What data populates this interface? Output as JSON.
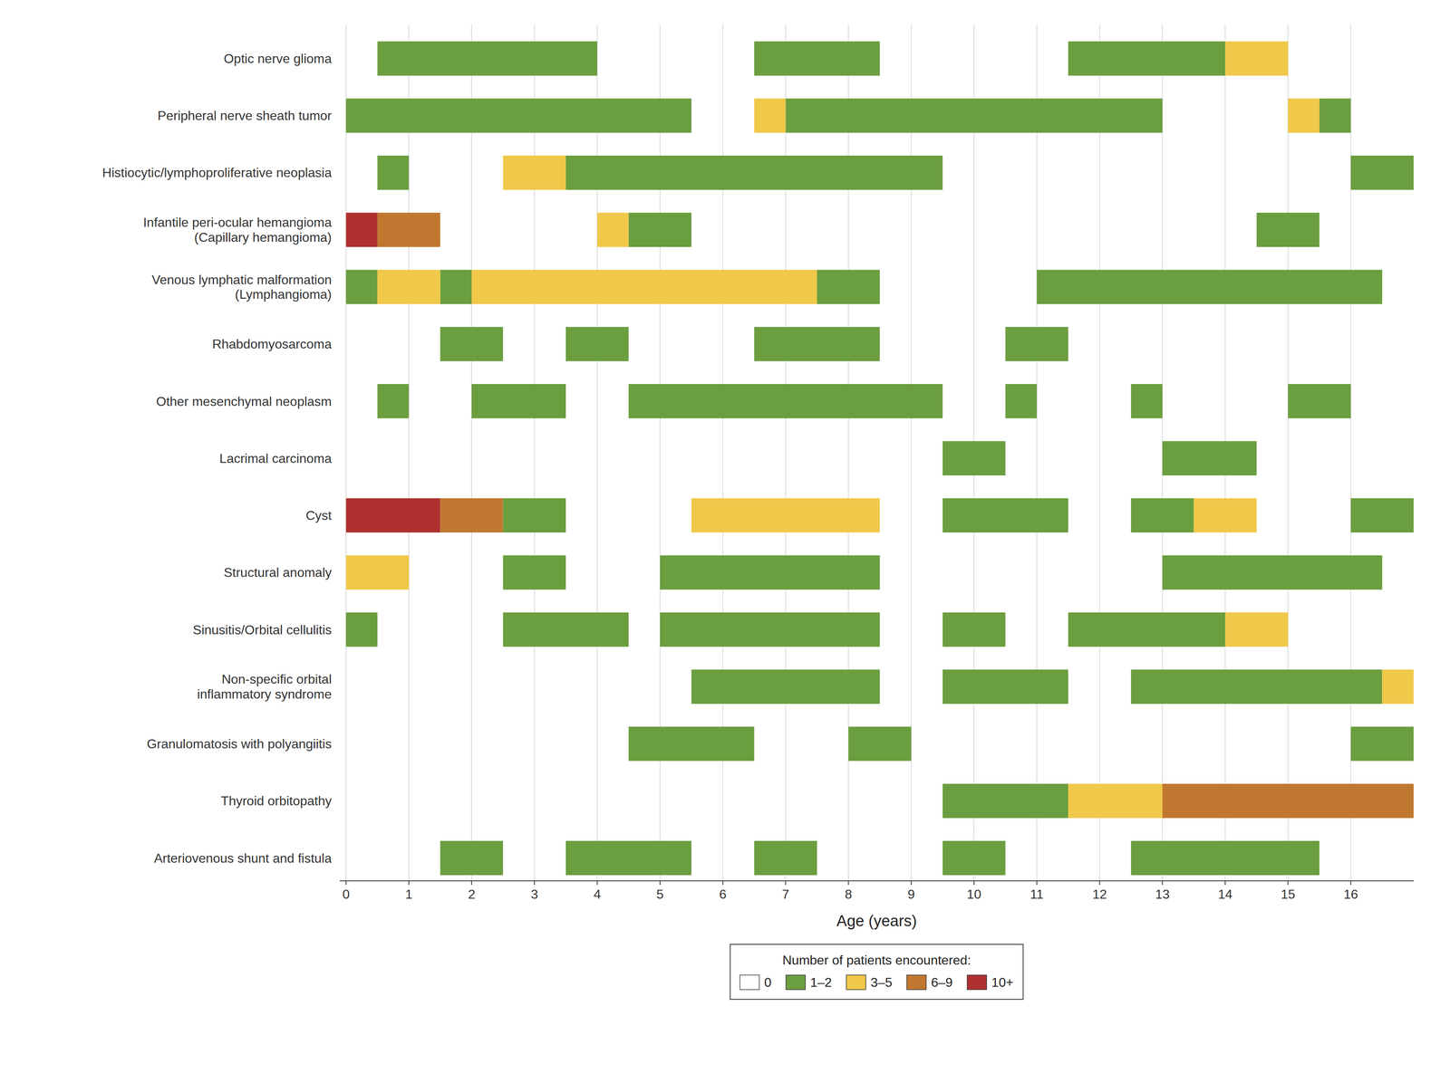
{
  "chart_data": {
    "type": "bar",
    "orientation": "horizontal",
    "xlabel": "Age (years)",
    "xlim": [
      -0.1,
      17
    ],
    "xticks": [
      0,
      1,
      2,
      3,
      4,
      5,
      6,
      7,
      8,
      9,
      10,
      11,
      12,
      13,
      14,
      15,
      16
    ],
    "grid": true,
    "legend": "bottom",
    "legend_title": "Number of patients encountered:",
    "categories": [
      "Optic nerve glioma",
      "Peripheral nerve sheath tumor",
      "Histiocytic/lymphoproliferative neoplasia",
      "Infantile peri-ocular hemangioma\n(Capillary hemangioma)",
      "Venous lymphatic malformation\n(Lymphangioma)",
      "Rhabdomyosarcoma",
      "Other mesenchymal neoplasm",
      "Lacrimal carcinoma",
      "Cyst",
      "Structural anomaly",
      "Sinusitis/Orbital cellulitis",
      "Non-specific orbital\ninflammatory syndrome",
      "Granulomatosis with polyangiitis",
      "Thyroid orbitopathy",
      "Arteriovenous shunt and fistula"
    ],
    "series": [
      {
        "name": "0",
        "color": "#ffffff",
        "values": [
          [],
          [],
          [],
          [],
          [],
          [],
          [],
          [],
          [],
          [],
          [],
          [],
          [],
          [],
          []
        ]
      },
      {
        "name": "1–2",
        "color": "#6b9e3f",
        "values": [
          [
            [
              0.5,
              4.0
            ],
            [
              6.5,
              8.5
            ],
            [
              11.5,
              14.0
            ]
          ],
          [
            [
              0.0,
              5.5
            ],
            [
              7.0,
              13.0
            ],
            [
              15.5,
              16.0
            ]
          ],
          [
            [
              0.5,
              1.0
            ],
            [
              3.5,
              9.5
            ],
            [
              16.0,
              17.0
            ]
          ],
          [
            [
              4.5,
              5.5
            ],
            [
              14.5,
              15.5
            ]
          ],
          [
            [
              0.0,
              0.5
            ],
            [
              1.5,
              2.0
            ],
            [
              7.5,
              8.5
            ],
            [
              11.0,
              16.5
            ]
          ],
          [
            [
              1.5,
              2.5
            ],
            [
              3.5,
              4.5
            ],
            [
              6.5,
              8.5
            ],
            [
              10.5,
              11.5
            ]
          ],
          [
            [
              0.5,
              1.0
            ],
            [
              2.0,
              3.5
            ],
            [
              4.5,
              9.5
            ],
            [
              10.5,
              11.0
            ],
            [
              12.5,
              13.0
            ],
            [
              15.0,
              16.0
            ]
          ],
          [
            [
              9.5,
              10.5
            ],
            [
              13.0,
              14.5
            ]
          ],
          [
            [
              2.5,
              3.5
            ],
            [
              9.5,
              11.5
            ],
            [
              12.5,
              13.5
            ],
            [
              16.0,
              17.0
            ]
          ],
          [
            [
              2.5,
              3.5
            ],
            [
              5.0,
              8.5
            ],
            [
              13.0,
              15.5
            ],
            [
              15.5,
              16.5
            ]
          ],
          [
            [
              0.0,
              0.5
            ],
            [
              2.5,
              4.5
            ],
            [
              5.0,
              8.5
            ],
            [
              9.5,
              10.5
            ],
            [
              11.5,
              14.0
            ]
          ],
          [
            [
              5.5,
              8.5
            ],
            [
              9.5,
              11.5
            ],
            [
              12.5,
              16.5
            ]
          ],
          [
            [
              4.5,
              6.5
            ],
            [
              8.0,
              9.0
            ],
            [
              16.0,
              17.0
            ]
          ],
          [
            [
              9.5,
              11.5
            ]
          ],
          [
            [
              1.5,
              2.5
            ],
            [
              3.5,
              5.5
            ],
            [
              6.5,
              7.5
            ],
            [
              9.5,
              10.5
            ],
            [
              12.5,
              15.5
            ]
          ]
        ]
      },
      {
        "name": "3–5",
        "color": "#f0c84a",
        "values": [
          [
            [
              14.0,
              15.0
            ]
          ],
          [
            [
              6.5,
              7.0
            ],
            [
              15.0,
              15.5
            ]
          ],
          [
            [
              2.5,
              3.5
            ]
          ],
          [
            [
              4.0,
              4.5
            ]
          ],
          [
            [
              0.5,
              1.5
            ],
            [
              2.0,
              7.5
            ]
          ],
          [],
          [],
          [],
          [
            [
              5.5,
              8.5
            ],
            [
              13.5,
              14.5
            ]
          ],
          [
            [
              0.0,
              1.0
            ]
          ],
          [
            [
              14.0,
              15.0
            ]
          ],
          [
            [
              16.5,
              17.0
            ]
          ],
          [],
          [
            [
              11.5,
              13.0
            ]
          ],
          []
        ]
      },
      {
        "name": "6–9",
        "color": "#c07830",
        "values": [
          [],
          [],
          [],
          [
            [
              0.5,
              1.5
            ]
          ],
          [],
          [],
          [],
          [],
          [
            [
              1.5,
              2.5
            ]
          ],
          [],
          [],
          [],
          [],
          [
            [
              13.0,
              17.0
            ]
          ],
          []
        ]
      },
      {
        "name": "10+",
        "color": "#b03030",
        "values": [
          [],
          [],
          [],
          [
            [
              0.0,
              0.5
            ]
          ],
          [],
          [],
          [],
          [],
          [
            [
              0.0,
              1.5
            ]
          ],
          [],
          [],
          [],
          [],
          [],
          []
        ]
      }
    ]
  }
}
